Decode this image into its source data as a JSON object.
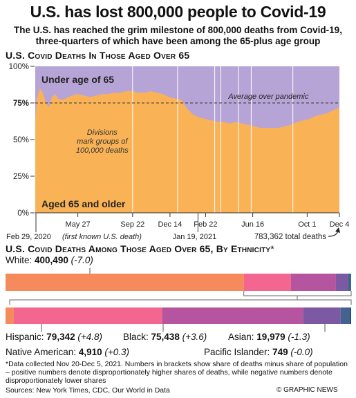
{
  "title": "U.S. has lost 800,000 people to Covid-19",
  "subtitle": "The U.S. has reached the grim milestone of 800,000 deaths from Covid-19, three-quarters of which have been among the 65-plus age group",
  "chart_data": [
    {
      "type": "area",
      "title": "U.S. Covid Deaths In Those Aged Over 65",
      "y_ticks": [
        "100%",
        "75%",
        "50%",
        "25%",
        "0%"
      ],
      "ylim": [
        0,
        100
      ],
      "x_ticks": [
        "May 27",
        "Sep 22",
        "Dec 14",
        "Feb 22",
        "Jun 16",
        "Oct 1",
        "Dec 4"
      ],
      "x_position_value": [
        0,
        100
      ],
      "series": [
        {
          "name": "Aged 65 and older",
          "color": "#f9b356",
          "x": [
            0,
            0.6,
            1.5,
            2.5,
            3.5,
            4.5,
            5.5,
            6.5,
            7.5,
            8.5,
            10,
            12,
            14,
            16,
            18,
            20,
            22,
            24,
            26,
            28,
            30,
            32,
            34,
            36,
            38,
            40,
            42,
            44,
            46,
            48,
            50,
            52,
            54,
            56,
            58,
            60,
            62,
            64,
            66,
            68,
            70,
            72,
            74,
            76,
            78,
            80,
            82,
            84,
            86,
            88,
            90,
            92,
            94,
            96,
            98,
            100
          ],
          "values": [
            63,
            78,
            85,
            82,
            75,
            72,
            79,
            81,
            78,
            77,
            78,
            80,
            81,
            80,
            79,
            80,
            81,
            81,
            82,
            82,
            83,
            83,
            82,
            82,
            83,
            82,
            81,
            79,
            78,
            77,
            71,
            67,
            65,
            64,
            63,
            62,
            62,
            61,
            62,
            61,
            60,
            59,
            58,
            58,
            58,
            58,
            59,
            60,
            62,
            63,
            64,
            66,
            67,
            68,
            70,
            72
          ]
        },
        {
          "name": "Under age of 65",
          "color": "#b7a4d6"
        }
      ],
      "reference_line": {
        "label": "Average over pandemic",
        "value": 75
      },
      "annotations": {
        "divisions": "Divisions mark groups of 100,000 deaths",
        "first_death": "Feb 29, 2020",
        "first_death_note": "(first known U.S. death)",
        "mid_date": "Jan 19, 2021",
        "total": "783,362 total deaths"
      }
    },
    {
      "type": "bar",
      "title": "U.S. Covid Deaths Among Those Aged Over 65, By Ethnicity",
      "title_mark": "*",
      "categories": [
        "White",
        "Hispanic",
        "Black",
        "Asian",
        "Native American",
        "Pacific Islander"
      ],
      "values": [
        400490,
        79342,
        75438,
        19979,
        4910,
        749
      ],
      "value_labels": [
        "400,490",
        "79,342",
        "75,438",
        "19,979",
        "4,910",
        "749"
      ],
      "share_diff": [
        "(-7.0)",
        "(+4.8)",
        "(+3.6)",
        "(-1.3)",
        "(+0.3)",
        "(-0.0)"
      ],
      "colors": [
        "#f58b5c",
        "#f2668f",
        "#b5549f",
        "#7b5aa3",
        "#44618f",
        "#1c4f8e"
      ]
    }
  ],
  "footnote": "*Data collected Nov 20-Dec 5, 2021. Numbers in brackets show share of deaths minus share of population – positive numbers denote disproportionately higher shares of deaths, while negative numbers denote disproportionately lower shares",
  "sources": "Sources: New York Times, CDC, Our World in Data",
  "credit": "© GRAPHIC NEWS"
}
